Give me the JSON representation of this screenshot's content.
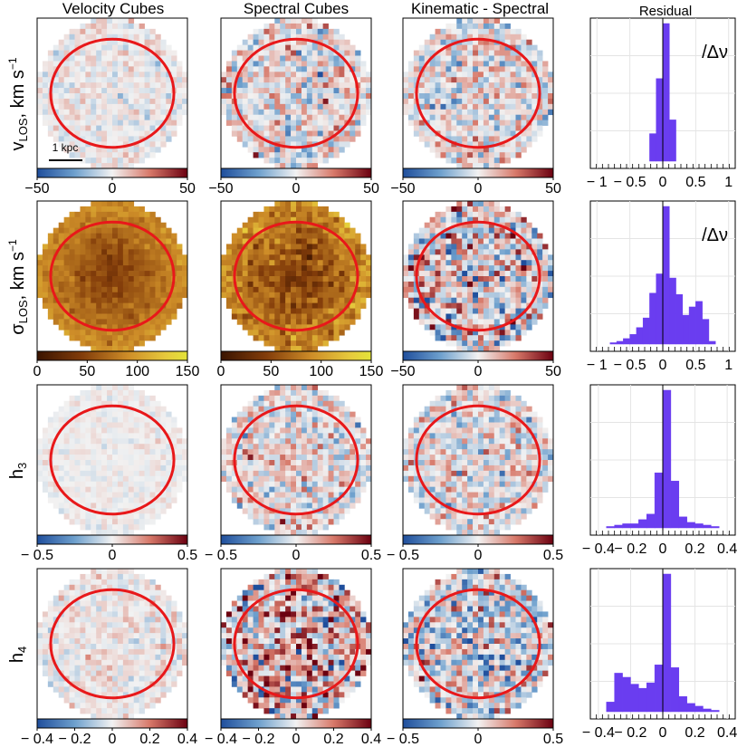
{
  "column_titles": [
    "Velocity Cubes",
    "Spectral Cubes",
    "Kinematic - Spectral",
    "Residual"
  ],
  "row_labels": [
    {
      "main": "v",
      "sub": "LOS",
      "rest": ", km s",
      "sup": "−1"
    },
    {
      "main": "σ",
      "sub": "LOS",
      "rest": ", km s",
      "sup": "−1"
    },
    {
      "main": "h",
      "sub": "3",
      "rest": "",
      "sup": ""
    },
    {
      "main": "h",
      "sub": "4",
      "rest": "",
      "sup": ""
    }
  ],
  "scale_bar": "1 kpc",
  "colors": {
    "ellipse": "#e8181a",
    "histogram": "#6a3df0",
    "diverging_low": "#1f4e9c",
    "diverging_high": "#6b0010",
    "sigma_low": "#3a1400",
    "sigma_high": "#e4e43a"
  },
  "chart_data": [
    {
      "type": "heatmap",
      "row": 0,
      "col": 0,
      "title": "Velocity Cubes",
      "ylabel": "vLOS, km s−1",
      "colorbar": {
        "cmap": "diverging",
        "range": [
          -50,
          50
        ],
        "ticks": [
          "−50",
          "0",
          "50"
        ]
      },
      "noise": 0.12,
      "bias": 0.02
    },
    {
      "type": "heatmap",
      "row": 0,
      "col": 1,
      "title": "Spectral Cubes",
      "colorbar": {
        "cmap": "diverging",
        "range": [
          -50,
          50
        ],
        "ticks": [
          "−50",
          "0",
          "50"
        ]
      },
      "noise": 0.28,
      "bias": 0.02
    },
    {
      "type": "heatmap",
      "row": 0,
      "col": 2,
      "title": "Kinematic - Spectral",
      "colorbar": {
        "cmap": "diverging",
        "range": [
          -50,
          50
        ],
        "ticks": [
          "−50",
          "0",
          "50"
        ]
      },
      "noise": 0.28,
      "bias": 0.0
    },
    {
      "type": "bar",
      "row": 0,
      "col": 3,
      "title": "Residual",
      "annotation": "/Δν",
      "xlim": [
        -1.1,
        1.1
      ],
      "xticks": [
        "− 1",
        "− 0.5",
        "0",
        "0.5",
        "1"
      ],
      "xtick_values": [
        -1,
        -0.5,
        0,
        0.5,
        1
      ],
      "bin_edges": [
        -0.2,
        -0.1,
        0,
        0.1,
        0.2
      ],
      "counts": [
        0.2,
        0.6,
        1.0,
        0.3
      ]
    },
    {
      "type": "heatmap",
      "row": 1,
      "col": 0,
      "colorbar": {
        "cmap": "sigma",
        "range": [
          0,
          150
        ],
        "ticks": [
          "0",
          "50",
          "100",
          "150"
        ]
      },
      "center_value": 0.28,
      "edge_value": 0.62,
      "noise": 0.05
    },
    {
      "type": "heatmap",
      "row": 1,
      "col": 1,
      "colorbar": {
        "cmap": "sigma",
        "range": [
          0,
          150
        ],
        "ticks": [
          "0",
          "50",
          "100",
          "150"
        ]
      },
      "center_value": 0.25,
      "edge_value": 0.62,
      "noise": 0.1
    },
    {
      "type": "heatmap",
      "row": 1,
      "col": 2,
      "colorbar": {
        "cmap": "diverging",
        "range": [
          -50,
          50
        ],
        "ticks": [
          "−50",
          "0",
          "50"
        ]
      },
      "noise": 0.45,
      "bias": 0.1
    },
    {
      "type": "bar",
      "row": 1,
      "col": 3,
      "annotation": "/Δν",
      "xlim": [
        -1.1,
        1.1
      ],
      "xticks": [
        "− 1",
        "− 0.5",
        "0",
        "0.5",
        "1"
      ],
      "xtick_values": [
        -1,
        -0.5,
        0,
        0.5,
        1
      ],
      "bin_edges": [
        -0.8,
        -0.7,
        -0.6,
        -0.5,
        -0.4,
        -0.3,
        -0.2,
        -0.1,
        0,
        0.1,
        0.2,
        0.3,
        0.4,
        0.5,
        0.6,
        0.7,
        0.8
      ],
      "counts": [
        0.01,
        0.02,
        0.04,
        0.07,
        0.12,
        0.19,
        0.37,
        0.51,
        1.0,
        0.48,
        0.36,
        0.21,
        0.27,
        0.31,
        0.18,
        0.02
      ]
    },
    {
      "type": "heatmap",
      "row": 2,
      "col": 0,
      "colorbar": {
        "cmap": "diverging",
        "range": [
          -0.5,
          0.5
        ],
        "ticks": [
          "− 0.5",
          "0",
          "0.5"
        ]
      },
      "noise": 0.06,
      "bias": 0.01
    },
    {
      "type": "heatmap",
      "row": 2,
      "col": 1,
      "colorbar": {
        "cmap": "diverging",
        "range": [
          -0.5,
          0.5
        ],
        "ticks": [
          "− 0.5",
          "0",
          "0.5"
        ]
      },
      "noise": 0.26,
      "bias": 0.04
    },
    {
      "type": "heatmap",
      "row": 2,
      "col": 2,
      "colorbar": {
        "cmap": "diverging",
        "range": [
          -0.5,
          0.5
        ],
        "ticks": [
          "− 0.5",
          "0",
          "0.5"
        ]
      },
      "noise": 0.26,
      "bias": 0.0
    },
    {
      "type": "bar",
      "row": 2,
      "col": 3,
      "xlim": [
        -0.45,
        0.45
      ],
      "xticks": [
        "− 0.4",
        "− 0.2",
        "0",
        "0.2",
        "0.4"
      ],
      "xtick_values": [
        -0.4,
        -0.2,
        0,
        0.2,
        0.4
      ],
      "bin_edges": [
        -0.35,
        -0.3,
        -0.25,
        -0.2,
        -0.15,
        -0.1,
        -0.05,
        0,
        0.05,
        0.1,
        0.15,
        0.2,
        0.25,
        0.3,
        0.35
      ],
      "counts": [
        0.01,
        0.02,
        0.03,
        0.03,
        0.06,
        0.1,
        0.4,
        1.0,
        0.34,
        0.08,
        0.04,
        0.03,
        0.02,
        0.01
      ]
    },
    {
      "type": "heatmap",
      "row": 3,
      "col": 0,
      "colorbar": {
        "cmap": "diverging",
        "range": [
          -0.4,
          0.4
        ],
        "ticks": [
          "− 0.4",
          "− 0.2",
          "0",
          "0.2",
          "0.4"
        ]
      },
      "noise": 0.12,
      "bias": 0.05
    },
    {
      "type": "heatmap",
      "row": 3,
      "col": 1,
      "colorbar": {
        "cmap": "diverging",
        "range": [
          -0.4,
          0.4
        ],
        "ticks": [
          "− 0.4",
          "− 0.2",
          "0",
          "0.2",
          "0.4"
        ]
      },
      "noise": 0.5,
      "bias": 0.3
    },
    {
      "type": "heatmap",
      "row": 3,
      "col": 2,
      "colorbar": {
        "cmap": "diverging",
        "range": [
          -0.5,
          0.5
        ],
        "ticks": [
          "− 0.5",
          "0",
          "0.5"
        ]
      },
      "noise": 0.38,
      "bias": -0.22
    },
    {
      "type": "bar",
      "row": 3,
      "col": 3,
      "xlim": [
        -0.45,
        0.45
      ],
      "xticks": [
        "− 0.4",
        "− 0.2",
        "0",
        "0.2",
        "0.4"
      ],
      "xtick_values": [
        -0.4,
        -0.2,
        0,
        0.2,
        0.4
      ],
      "bin_edges": [
        -0.35,
        -0.3,
        -0.25,
        -0.2,
        -0.15,
        -0.1,
        -0.05,
        0,
        0.05,
        0.1,
        0.15,
        0.2,
        0.25,
        0.3,
        0.35
      ],
      "counts": [
        0.07,
        0.28,
        0.25,
        0.2,
        0.17,
        0.21,
        0.34,
        1.0,
        0.32,
        0.11,
        0.06,
        0.04,
        0.02,
        0.01
      ]
    }
  ]
}
